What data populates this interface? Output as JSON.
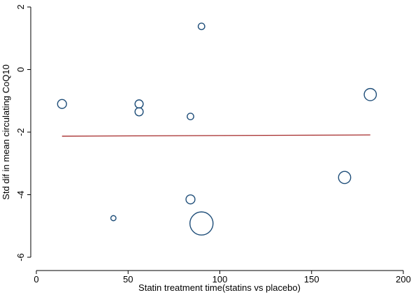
{
  "chart_data": {
    "type": "scatter",
    "title": "",
    "xlabel": "Statin treatment time(statins vs placebo)",
    "ylabel": "Std dif in mean circulating CoQ10",
    "xlim": [
      0,
      200
    ],
    "ylim": [
      -6,
      2
    ],
    "x_ticks": [
      "0",
      "50",
      "100",
      "150",
      "200"
    ],
    "y_ticks": [
      "2",
      "0",
      "-2",
      "-4",
      "-6"
    ],
    "grid": false,
    "legend": "none",
    "points": [
      {
        "x": 14,
        "y": -1.1,
        "weight": 3
      },
      {
        "x": 42,
        "y": -4.75,
        "weight": 1
      },
      {
        "x": 56,
        "y": -1.1,
        "weight": 2.5
      },
      {
        "x": 56,
        "y": -1.35,
        "weight": 2.5
      },
      {
        "x": 84,
        "y": -1.5,
        "weight": 1.6
      },
      {
        "x": 84,
        "y": -4.15,
        "weight": 3
      },
      {
        "x": 90,
        "y": 1.38,
        "weight": 1.6
      },
      {
        "x": 90,
        "y": -4.92,
        "weight": 20
      },
      {
        "x": 168,
        "y": -3.45,
        "weight": 5.5
      },
      {
        "x": 182,
        "y": -0.8,
        "weight": 5.5
      }
    ],
    "fit_line": {
      "x": [
        14,
        182
      ],
      "y": [
        -2.13,
        -2.09
      ]
    },
    "colors": {
      "marker_edge": "#1f4e79",
      "fit_line": "#a52a2a",
      "axis": "#000000"
    }
  }
}
